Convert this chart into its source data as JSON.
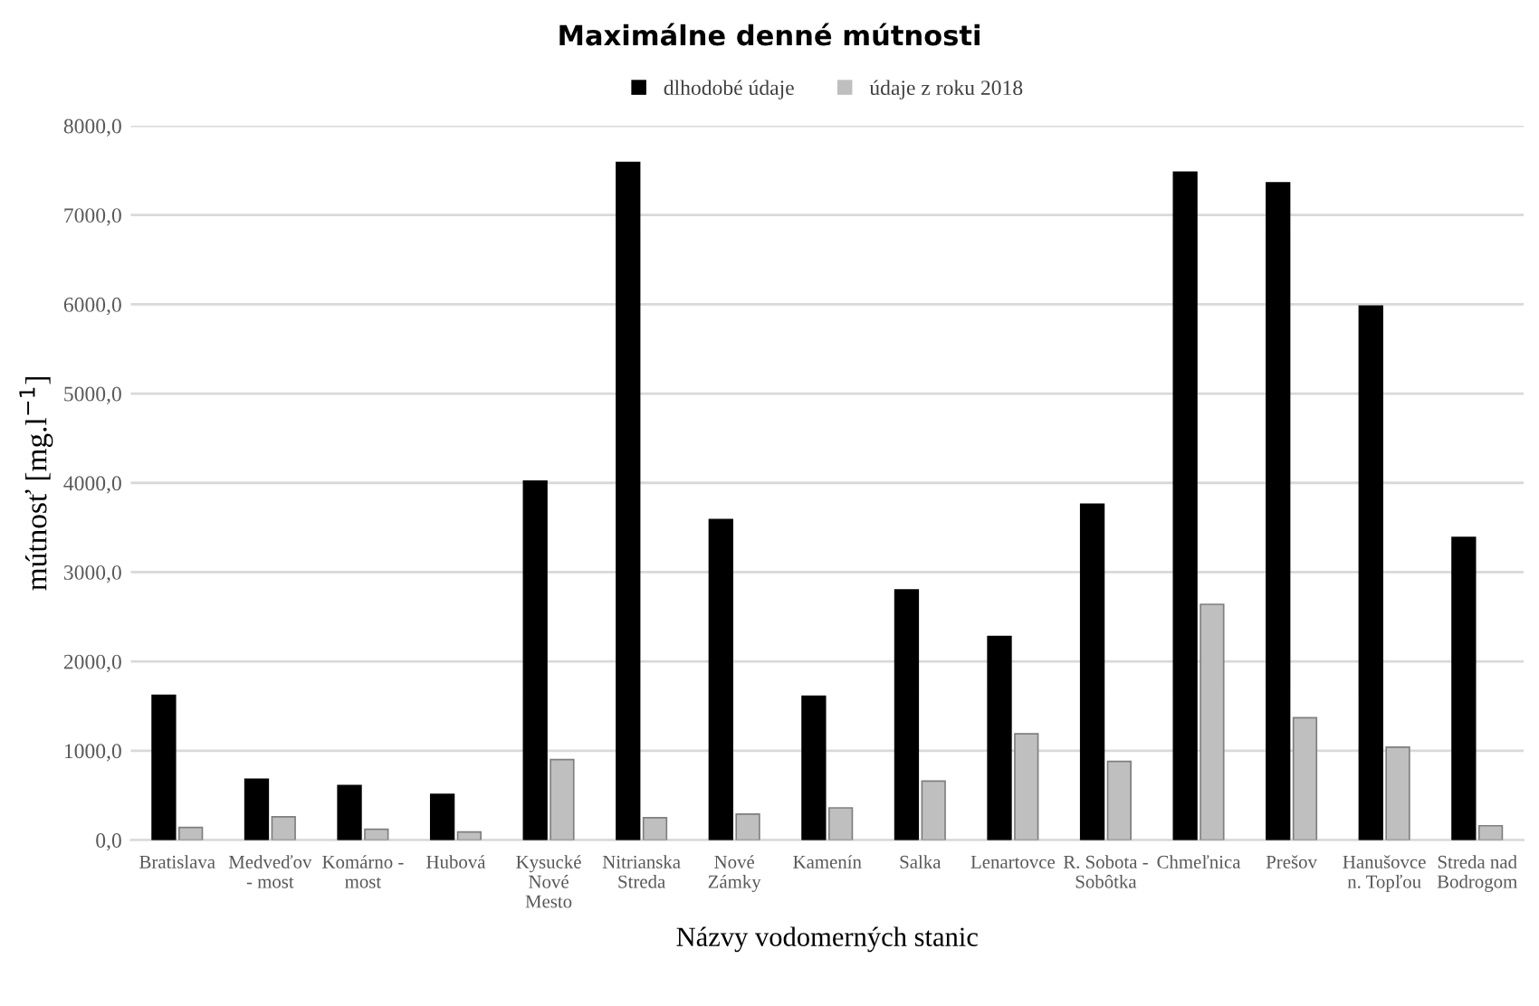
{
  "chart_data": {
    "type": "bar",
    "title": "Maximálne denné mútnosti",
    "xlabel": "Názvy vodomerných stanic",
    "ylabel": "mútnosť [mg.l$^{−1}$]",
    "categories": [
      "Bratislava",
      "Medveďov\n- most",
      "Komárno -\nmost",
      "Hubová",
      "Kysucké\nNové\nMesto",
      "Nitrianska\nStreda",
      "Nové\nZámky",
      "Kamenín",
      "Salka",
      "Lenartovce",
      "R. Sobota -\nSobôtka",
      "Chmeľnica",
      "Prešov",
      "Hanušovce\nn. Topľou",
      "Streda nad\nBodrogom"
    ],
    "series": [
      {
        "name": "dlhodobé údaje",
        "color": "#000000",
        "values": [
          1620,
          680,
          610,
          510,
          4020,
          7590,
          3590,
          1610,
          2800,
          2280,
          3760,
          7480,
          7360,
          5980,
          3390
        ]
      },
      {
        "name": "údaje z roku 2018",
        "color": "#bfbfbf",
        "values": [
          140,
          260,
          120,
          90,
          900,
          250,
          290,
          360,
          660,
          1190,
          880,
          2640,
          1370,
          1040,
          160
        ]
      }
    ],
    "ylim": [
      0,
      8000
    ],
    "yticks": [
      {
        "value": 0,
        "label": "0,0"
      },
      {
        "value": 1000,
        "label": "1000,0"
      },
      {
        "value": 2000,
        "label": "2000,0"
      },
      {
        "value": 3000,
        "label": "3000,0"
      },
      {
        "value": 4000,
        "label": "4000,0"
      },
      {
        "value": 5000,
        "label": "5000,0"
      },
      {
        "value": 6000,
        "label": "6000,0"
      },
      {
        "value": 7000,
        "label": "7000,0"
      },
      {
        "value": 8000,
        "label": "8000,0"
      }
    ],
    "grid": "y",
    "legend": "top"
  }
}
